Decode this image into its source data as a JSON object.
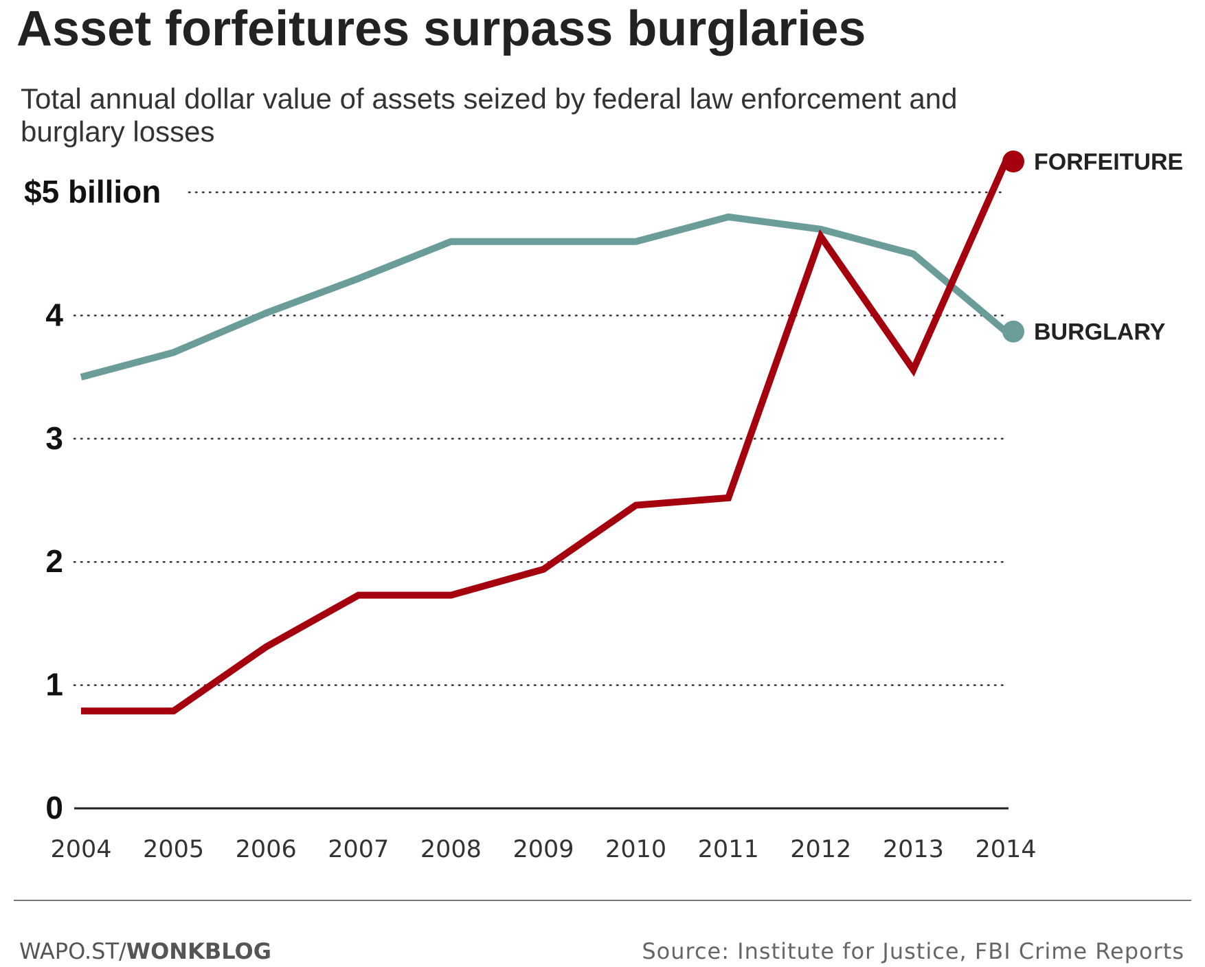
{
  "chart_data": {
    "type": "line",
    "title": "Asset forfeitures surpass burglaries",
    "subtitle_lines": [
      "Total annual dollar value of assets seized by federal law enforcement and",
      "burglary losses"
    ],
    "xlabel": "",
    "ylabel": "",
    "x": [
      "2004",
      "2005",
      "2006",
      "2007",
      "2008",
      "2009",
      "2010",
      "2011",
      "2012",
      "2013",
      "2014"
    ],
    "y_ticks": [
      0,
      1,
      2,
      3,
      4,
      5
    ],
    "y_tick_labels": [
      "0",
      "1",
      "2",
      "3",
      "4",
      "$5 billion"
    ],
    "ylim": [
      0,
      5.3
    ],
    "grid": true,
    "series": [
      {
        "name": "BURGLARY",
        "color": "#6a9c9a",
        "values": [
          3.5,
          3.7,
          4.02,
          4.3,
          4.6,
          4.6,
          4.6,
          4.8,
          4.7,
          4.5,
          3.87
        ]
      },
      {
        "name": "FORFEITURE",
        "color": "#a5000d",
        "values": [
          0.79,
          0.79,
          1.31,
          1.73,
          1.73,
          1.94,
          2.46,
          2.52,
          4.64,
          3.56,
          5.25
        ]
      }
    ]
  },
  "footer": {
    "credit_prefix": "WAPO.ST/",
    "credit_bold": "WONKBLOG",
    "source": "Source: Institute for Justice, FBI Crime Reports"
  }
}
